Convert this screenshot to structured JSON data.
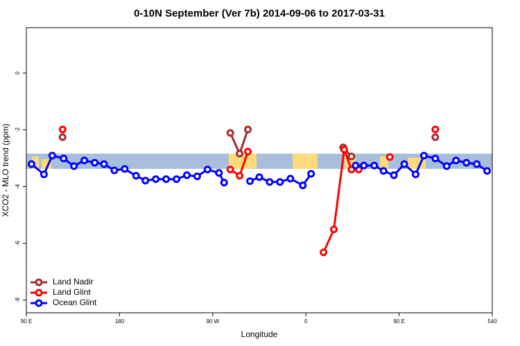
{
  "chart_data": {
    "type": "line",
    "title": "0-10N September (Ver 7b)   2014-09-06 to 2017-03-31",
    "x_label": "Longitude",
    "y_label": "XCO2 - MLO trend (ppm)",
    "xlim": [
      90,
      540
    ],
    "xticks": [
      {
        "value": 90,
        "label": "90 E"
      },
      180,
      {
        "value": 270,
        "label": "90 W"
      },
      {
        "value": 360,
        "label": "0"
      },
      {
        "value": 450,
        "label": "90 E"
      },
      540
    ],
    "ylim": [
      -8.45,
      1.6
    ],
    "yticks": [
      -8,
      -6,
      -4,
      -2,
      0
    ],
    "legend": "bottom-left",
    "series": [
      {
        "name": "Land Nadir",
        "color": "#a52a2a",
        "x": [
          125,
          null,
          287,
          296,
          304,
          null,
          396,
          404,
          null,
          485
        ],
        "values": [
          -2.26,
          null,
          -2.11,
          -2.84,
          -1.99,
          null,
          -2.62,
          -2.94,
          null,
          -2.26
        ]
      },
      {
        "name": "Land Glint",
        "color": "#ff0000",
        "x": [
          125,
          null,
          287,
          296,
          304,
          null,
          377,
          387,
          397,
          404,
          411,
          null,
          441,
          null,
          485
        ],
        "values": [
          -1.99,
          null,
          -3.4,
          -3.62,
          -2.77,
          null,
          -6.32,
          -5.51,
          -2.7,
          -3.4,
          -3.4,
          null,
          -2.96,
          null,
          -1.99
        ]
      },
      {
        "name": "Ocean Glint",
        "color": "#0000ff",
        "x": [
          95,
          107,
          115,
          126,
          136,
          146,
          156,
          165,
          175,
          185,
          196,
          205,
          215,
          225,
          235,
          245,
          255,
          265,
          276,
          281,
          null,
          306,
          315,
          325,
          335,
          345,
          357,
          365,
          null,
          408,
          416,
          426,
          435,
          445,
          455,
          466,
          474,
          485,
          496,
          505,
          515,
          525,
          535
        ],
        "values": [
          -3.21,
          -3.57,
          -2.91,
          -3.01,
          -3.28,
          -3.08,
          -3.16,
          -3.21,
          -3.43,
          -3.38,
          -3.62,
          -3.79,
          -3.74,
          -3.74,
          -3.74,
          -3.6,
          -3.64,
          -3.4,
          -3.52,
          -3.86,
          null,
          -3.81,
          -3.67,
          -3.84,
          -3.84,
          -3.72,
          -3.96,
          -3.55,
          null,
          -3.26,
          -3.26,
          -3.26,
          -3.45,
          -3.6,
          -3.21,
          -3.57,
          -2.91,
          -3.01,
          -3.28,
          -3.08,
          -3.16,
          -3.21,
          -3.45
        ]
      }
    ]
  }
}
